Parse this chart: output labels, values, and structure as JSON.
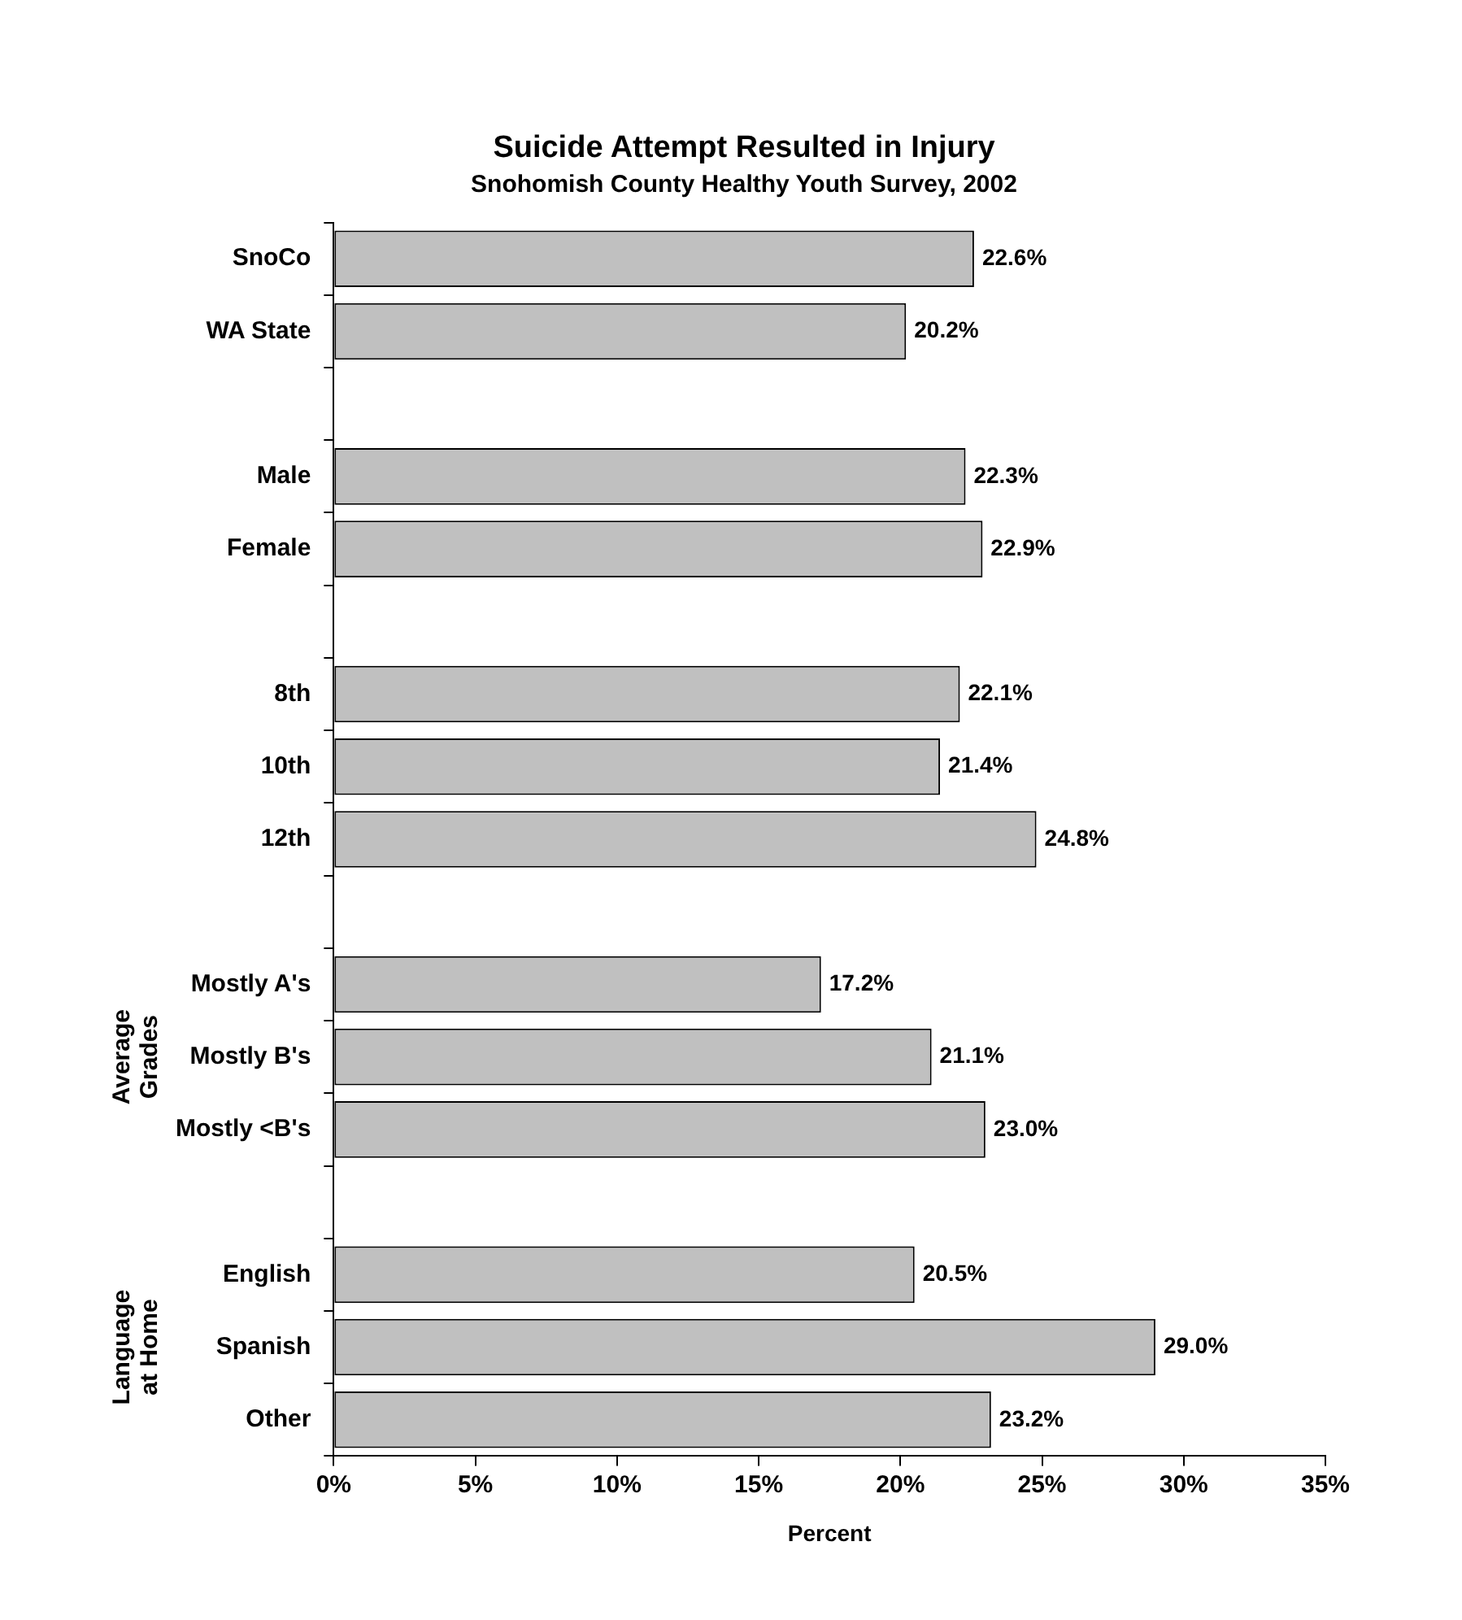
{
  "chart_data": {
    "type": "bar",
    "orientation": "horizontal",
    "title": "Suicide Attempt Resulted in Injury",
    "subtitle": "Snohomish County Healthy Youth Survey, 2002",
    "xlabel": "Percent",
    "categories": [
      "SnoCo",
      "WA State",
      null,
      "Male",
      "Female",
      null,
      "8th",
      "10th",
      "12th",
      null,
      "Mostly A's",
      "Mostly B's",
      "Mostly <B's",
      null,
      "English",
      "Spanish",
      "Other"
    ],
    "values": [
      22.6,
      20.2,
      null,
      22.3,
      22.9,
      null,
      22.1,
      21.4,
      24.8,
      null,
      17.2,
      21.1,
      23.0,
      null,
      20.5,
      29.0,
      23.2
    ],
    "value_labels": [
      "22.6%",
      "20.2%",
      null,
      "22.3%",
      "22.9%",
      null,
      "22.1%",
      "21.4%",
      "24.8%",
      null,
      "17.2%",
      "21.1%",
      "23.0%",
      null,
      "20.5%",
      "29.0%",
      "23.2%"
    ],
    "color": "#c0c0c0",
    "xlim": [
      0,
      35
    ],
    "xticks": [
      {
        "value": 0,
        "label": "0%"
      },
      {
        "value": 5,
        "label": "5%"
      },
      {
        "value": 10,
        "label": "10%"
      },
      {
        "value": 15,
        "label": "15%"
      },
      {
        "value": 20,
        "label": "20%"
      },
      {
        "value": 25,
        "label": "25%"
      },
      {
        "value": 30,
        "label": "30%"
      },
      {
        "value": 35,
        "label": "35%"
      }
    ],
    "annotations": [
      "Average Grades",
      "Language at Home"
    ],
    "grid": false,
    "legend": false
  }
}
